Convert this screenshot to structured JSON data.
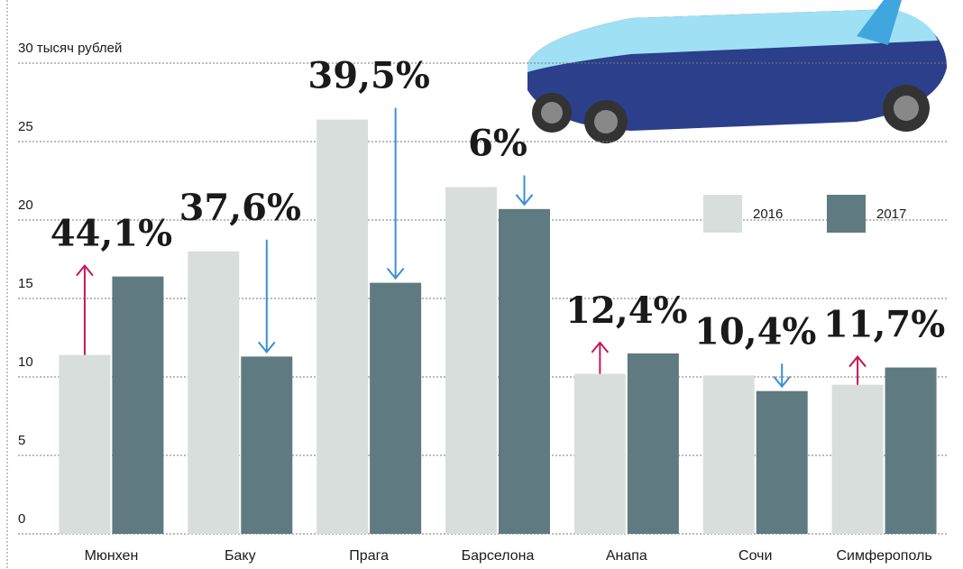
{
  "chart_data": {
    "type": "bar",
    "categories": [
      "Мюнхен",
      "Баку",
      "Прага",
      "Барселона",
      "Анапа",
      "Сочи",
      "Симферополь"
    ],
    "series": [
      {
        "name": "2016",
        "color": "#d8dedb",
        "values": [
          11.4,
          18.0,
          26.4,
          22.1,
          10.2,
          10.1,
          9.5
        ]
      },
      {
        "name": "2017",
        "color": "#5f7a80",
        "values": [
          16.4,
          11.3,
          16.0,
          20.7,
          11.5,
          9.1,
          10.6
        ]
      }
    ],
    "change_labels": [
      "44,1%",
      "37,6%",
      "39,5%",
      "6%",
      "12,4%",
      "10,4%",
      "11,7%"
    ],
    "up_color": "#c2185b",
    "down_color": "#3b8fd4",
    "ylim": [
      0,
      30
    ],
    "yticks": [
      0,
      5,
      10,
      15,
      20,
      25,
      {
        "value": 30,
        "label": "30 тысяч рублей"
      }
    ],
    "grid": true,
    "legend": "right"
  }
}
